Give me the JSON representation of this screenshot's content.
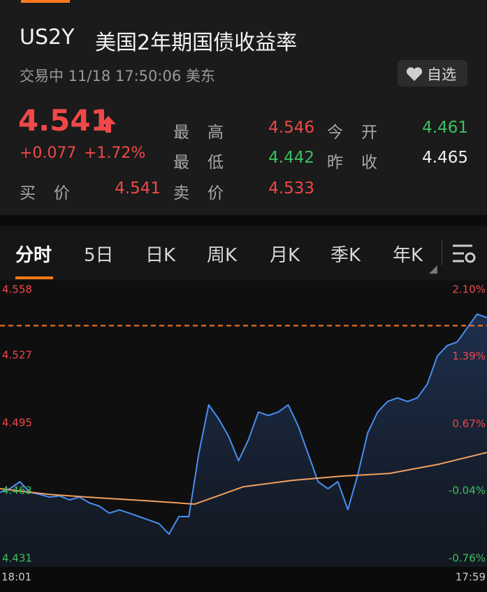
{
  "header": {
    "symbol": "US2Y",
    "name": "美国2年期国债收益率",
    "status": "交易中 11/18 17:50:06 美东",
    "watch_button": "自选"
  },
  "quote": {
    "price": "4.541",
    "change": "+0.077",
    "change_pct": "+1.72%",
    "stats": [
      {
        "label": "最高",
        "value": "4.546",
        "tone": "up"
      },
      {
        "label": "今开",
        "value": "4.461",
        "tone": "down"
      },
      {
        "label": "最低",
        "value": "4.442",
        "tone": "down"
      },
      {
        "label": "昨收",
        "value": "4.465",
        "tone": "flat"
      },
      {
        "label": "买价",
        "value": "4.541",
        "tone": "up"
      },
      {
        "label": "卖价",
        "value": "4.533",
        "tone": "up"
      }
    ]
  },
  "tabs": [
    "分时",
    "5日",
    "日K",
    "周K",
    "月K",
    "季K",
    "年K"
  ],
  "chart_data": {
    "type": "line",
    "x_labels": [
      "18:01",
      "17:59"
    ],
    "ylim": [
      4.431,
      4.558
    ],
    "yticks": [
      4.558,
      4.527,
      4.495,
      4.463,
      4.431
    ],
    "y2lim": [
      -0.76,
      2.1
    ],
    "y2ticks": [
      {
        "value": 2.1,
        "label": "2.10%"
      },
      {
        "value": 1.39,
        "label": "1.39%"
      },
      {
        "value": 0.67,
        "label": "0.67%"
      },
      {
        "value": -0.04,
        "label": "-0.04%"
      },
      {
        "value": -0.76,
        "label": "-0.76%"
      }
    ],
    "price_line": 4.541,
    "series": [
      {
        "color": "#4a8ef0",
        "values": [
          4.4623,
          4.464,
          4.4673,
          4.4623,
          4.4613,
          4.46,
          4.4606,
          4.4587,
          4.46,
          4.4573,
          4.4557,
          4.4524,
          4.454,
          4.4524,
          4.4508,
          4.4491,
          4.4475,
          4.4425,
          4.4508,
          4.4508,
          4.4805,
          4.5036,
          4.497,
          4.4887,
          4.4772,
          4.4871,
          4.5002,
          4.4986,
          4.5002,
          4.5036,
          4.4937,
          4.4805,
          4.4673,
          4.464,
          4.4673,
          4.4541,
          4.4706,
          4.4904,
          4.5002,
          4.5052,
          4.5069,
          4.5052,
          4.5069,
          4.5135,
          4.5267,
          4.5316,
          4.5333,
          4.5399,
          4.5465,
          4.5448
        ]
      },
      {
        "color": "#f0a060",
        "values": [
          4.464,
          4.4613,
          4.4597,
          4.4583,
          4.4567,
          4.4649,
          4.4679,
          4.4699,
          4.4712,
          4.4755,
          4.4811
        ]
      }
    ]
  }
}
